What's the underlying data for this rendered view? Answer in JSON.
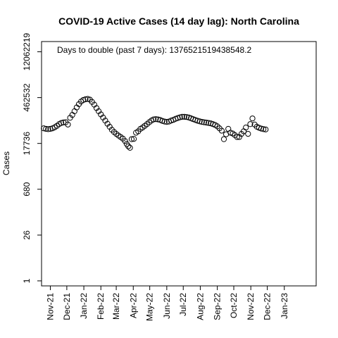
{
  "chart_data": {
    "type": "scatter",
    "title": "COVID-19 Active Cases (14 day lag): North Carolina",
    "xlabel": "",
    "ylabel": "Cases",
    "y_scale": "log",
    "y_ticks": [
      1,
      26,
      680,
      17736,
      462532,
      12062219
    ],
    "y_tick_labels": [
      "1",
      "26",
      "680",
      "17736",
      "462532",
      "12062219"
    ],
    "x_tick_labels": [
      "Nov-21",
      "Dec-21",
      "Jan-22",
      "Feb-22",
      "Mar-22",
      "Apr-22",
      "May-22",
      "Jun-22",
      "Jul-22",
      "Aug-22",
      "Sep-22",
      "Oct-22",
      "Nov-22",
      "Dec-22",
      "Jan-23"
    ],
    "x_tick_dates": [
      "2021-11-01",
      "2021-12-01",
      "2022-01-01",
      "2022-02-01",
      "2022-03-01",
      "2022-04-01",
      "2022-05-01",
      "2022-06-01",
      "2022-07-01",
      "2022-08-01",
      "2022-09-01",
      "2022-10-01",
      "2022-11-01",
      "2022-12-01",
      "2023-01-01"
    ],
    "xlim": [
      "2021-10-16",
      "2023-02-28"
    ],
    "ylim": [
      0.7,
      25000000
    ],
    "annotation": "Days to double (past 7 days): 1376521519438548.2",
    "marker": "open-circle",
    "grid": false,
    "legend": "none",
    "series": [
      {
        "points": [
          [
            "2021-10-20",
            52000
          ],
          [
            "2021-10-24",
            50000
          ],
          [
            "2021-10-28",
            49000
          ],
          [
            "2021-11-01",
            50000
          ],
          [
            "2021-11-05",
            52000
          ],
          [
            "2021-11-09",
            56000
          ],
          [
            "2021-11-13",
            62000
          ],
          [
            "2021-11-17",
            70000
          ],
          [
            "2021-11-21",
            76000
          ],
          [
            "2021-11-25",
            79000
          ],
          [
            "2021-11-29",
            80000
          ],
          [
            "2021-12-03",
            68000
          ],
          [
            "2021-12-07",
            110000
          ],
          [
            "2021-12-11",
            135000
          ],
          [
            "2021-12-15",
            175000
          ],
          [
            "2021-12-19",
            230000
          ],
          [
            "2021-12-23",
            290000
          ],
          [
            "2021-12-27",
            350000
          ],
          [
            "2021-12-31",
            390000
          ],
          [
            "2022-01-04",
            410000
          ],
          [
            "2022-01-08",
            420000
          ],
          [
            "2022-01-12",
            400000
          ],
          [
            "2022-01-16",
            340000
          ],
          [
            "2022-01-20",
            280000
          ],
          [
            "2022-01-24",
            220000
          ],
          [
            "2022-01-28",
            175000
          ],
          [
            "2022-02-01",
            140000
          ],
          [
            "2022-02-05",
            112000
          ],
          [
            "2022-02-09",
            90000
          ],
          [
            "2022-02-13",
            72000
          ],
          [
            "2022-02-17",
            58000
          ],
          [
            "2022-02-21",
            47000
          ],
          [
            "2022-02-25",
            40000
          ],
          [
            "2022-03-01",
            35000
          ],
          [
            "2022-03-05",
            31000
          ],
          [
            "2022-03-09",
            28000
          ],
          [
            "2022-03-13",
            25000
          ],
          [
            "2022-03-17",
            21000
          ],
          [
            "2022-03-20",
            17000
          ],
          [
            "2022-03-23",
            14500
          ],
          [
            "2022-03-26",
            13000
          ],
          [
            "2022-03-29",
            24000
          ],
          [
            "2022-04-02",
            24500
          ],
          [
            "2022-04-06",
            38000
          ],
          [
            "2022-04-10",
            42000
          ],
          [
            "2022-04-14",
            50000
          ],
          [
            "2022-04-18",
            55000
          ],
          [
            "2022-04-22",
            62000
          ],
          [
            "2022-04-26",
            70000
          ],
          [
            "2022-04-30",
            80000
          ],
          [
            "2022-05-04",
            90000
          ],
          [
            "2022-05-08",
            98000
          ],
          [
            "2022-05-12",
            100000
          ],
          [
            "2022-05-16",
            98000
          ],
          [
            "2022-05-20",
            94000
          ],
          [
            "2022-05-24",
            88000
          ],
          [
            "2022-05-28",
            84000
          ],
          [
            "2022-06-01",
            82000
          ],
          [
            "2022-06-05",
            84000
          ],
          [
            "2022-06-09",
            90000
          ],
          [
            "2022-06-13",
            95000
          ],
          [
            "2022-06-17",
            102000
          ],
          [
            "2022-06-21",
            108000
          ],
          [
            "2022-06-25",
            114000
          ],
          [
            "2022-06-29",
            118000
          ],
          [
            "2022-07-03",
            118000
          ],
          [
            "2022-07-07",
            116000
          ],
          [
            "2022-07-11",
            112000
          ],
          [
            "2022-07-15",
            106000
          ],
          [
            "2022-07-19",
            100000
          ],
          [
            "2022-07-23",
            94000
          ],
          [
            "2022-07-27",
            89000
          ],
          [
            "2022-07-31",
            85000
          ],
          [
            "2022-08-04",
            82000
          ],
          [
            "2022-08-08",
            80000
          ],
          [
            "2022-08-12",
            78000
          ],
          [
            "2022-08-16",
            76000
          ],
          [
            "2022-08-20",
            74000
          ],
          [
            "2022-08-24",
            70000
          ],
          [
            "2022-08-28",
            66000
          ],
          [
            "2022-09-01",
            60000
          ],
          [
            "2022-09-05",
            52000
          ],
          [
            "2022-09-09",
            44000
          ],
          [
            "2022-09-13",
            24000
          ],
          [
            "2022-09-17",
            34000
          ],
          [
            "2022-09-21",
            50000
          ],
          [
            "2022-09-25",
            38000
          ],
          [
            "2022-09-29",
            36000
          ],
          [
            "2022-10-03",
            32000
          ],
          [
            "2022-10-07",
            28000
          ],
          [
            "2022-10-11",
            28000
          ],
          [
            "2022-10-15",
            35000
          ],
          [
            "2022-10-19",
            42000
          ],
          [
            "2022-10-23",
            55000
          ],
          [
            "2022-10-27",
            35000
          ],
          [
            "2022-10-31",
            70000
          ],
          [
            "2022-11-04",
            105000
          ],
          [
            "2022-11-08",
            68000
          ],
          [
            "2022-11-12",
            58000
          ],
          [
            "2022-11-16",
            54000
          ],
          [
            "2022-11-20",
            51000
          ],
          [
            "2022-11-24",
            49000
          ],
          [
            "2022-11-28",
            48000
          ]
        ]
      }
    ]
  }
}
